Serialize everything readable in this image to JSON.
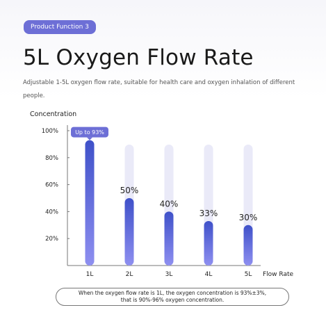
{
  "header": {
    "badge": "Product Function 3",
    "title": "5L Oxygen Flow Rate",
    "description": "Adjustable 1-5L oxygen flow rate, suitable for health care and oxygen inhalation of different people."
  },
  "colors": {
    "accent": "#6d6fd6",
    "bar_gradient_top": "#3f51c9",
    "bar_gradient_bottom": "#8e8ff0",
    "bar_track": "#eaeaf8"
  },
  "chart_data": {
    "type": "bar",
    "ylabel": "Concentration",
    "xlabel": "Flow Rate",
    "categories": [
      "1L",
      "2L",
      "3L",
      "4L",
      "5L"
    ],
    "values": [
      93,
      50,
      40,
      33,
      30
    ],
    "value_labels": [
      "Up to 93%",
      "50%",
      "40%",
      "33%",
      "30%"
    ],
    "ylim": [
      0,
      100
    ],
    "yticks": [
      20,
      40,
      60,
      80,
      100
    ],
    "ytick_labels": [
      "20%",
      "40%",
      "60%",
      "80%",
      "100%"
    ],
    "grid": false,
    "legend": "none"
  },
  "note": {
    "line1": "When the oxygen flow rate is 1L, the oxygen concentration is 93%±3%,",
    "line2": "that is 90%-96% oxygen concentration."
  }
}
